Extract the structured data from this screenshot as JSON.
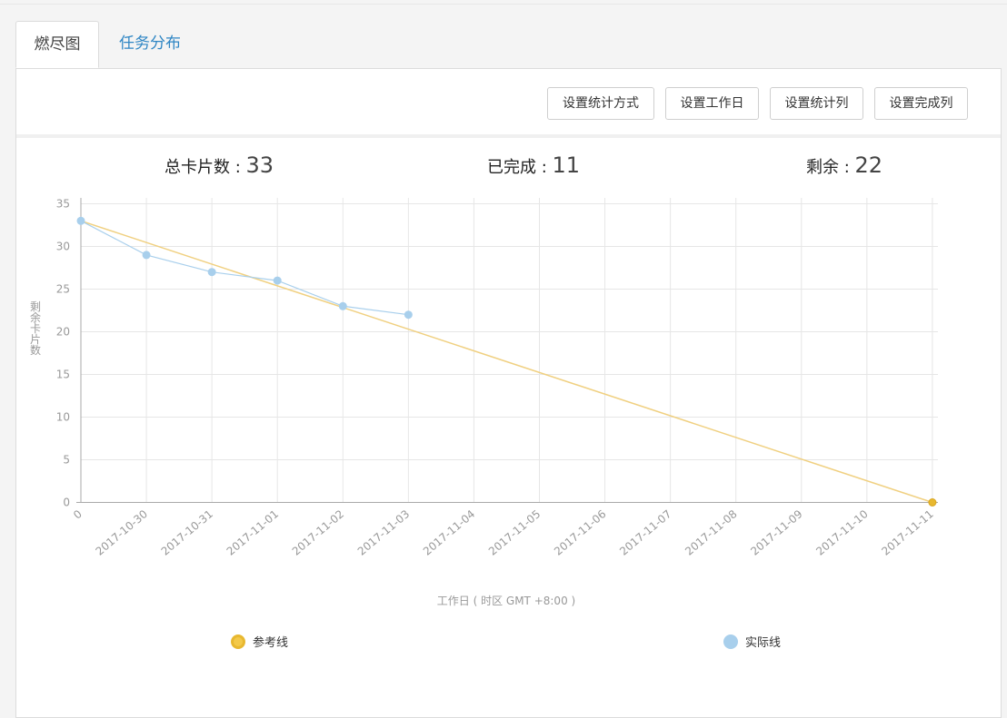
{
  "tabs": {
    "burndown": "燃尽图",
    "task_distribution": "任务分布"
  },
  "toolbar": {
    "stat_method": "设置统计方式",
    "workdays": "设置工作日",
    "stat_columns": "设置统计列",
    "done_columns": "设置完成列"
  },
  "stats": {
    "total_label": "总卡片数 : ",
    "total_value": "33",
    "done_label": "已完成 : ",
    "done_value": "11",
    "remain_label": "剩余 : ",
    "remain_value": "22"
  },
  "colors": {
    "reference": "#f0d080",
    "reference_marker": "#e8b830",
    "actual": "#a8cfec",
    "active_tab_text": "#444444",
    "link": "#2f86c4"
  },
  "chart_data": {
    "type": "line",
    "categories": [
      "0",
      "2017-10-30",
      "2017-10-31",
      "2017-11-01",
      "2017-11-02",
      "2017-11-03",
      "2017-11-04",
      "2017-11-05",
      "2017-11-06",
      "2017-11-07",
      "2017-11-08",
      "2017-11-09",
      "2017-11-10",
      "2017-11-11"
    ],
    "xlabel": "工作日 ( 时区 GMT +8:00 )",
    "ylabel": "剩余卡片数",
    "ylim": [
      0,
      35
    ],
    "yticks": [
      0,
      5,
      10,
      15,
      20,
      25,
      30,
      35
    ],
    "grid": true,
    "legend_position": "bottom",
    "series": [
      {
        "name": "参考线",
        "values": [
          33,
          null,
          null,
          null,
          null,
          null,
          null,
          null,
          null,
          null,
          null,
          null,
          null,
          0
        ]
      },
      {
        "name": "实际线",
        "values": [
          33,
          29,
          27,
          26,
          23,
          22,
          null,
          null,
          null,
          null,
          null,
          null,
          null,
          null
        ]
      }
    ]
  }
}
